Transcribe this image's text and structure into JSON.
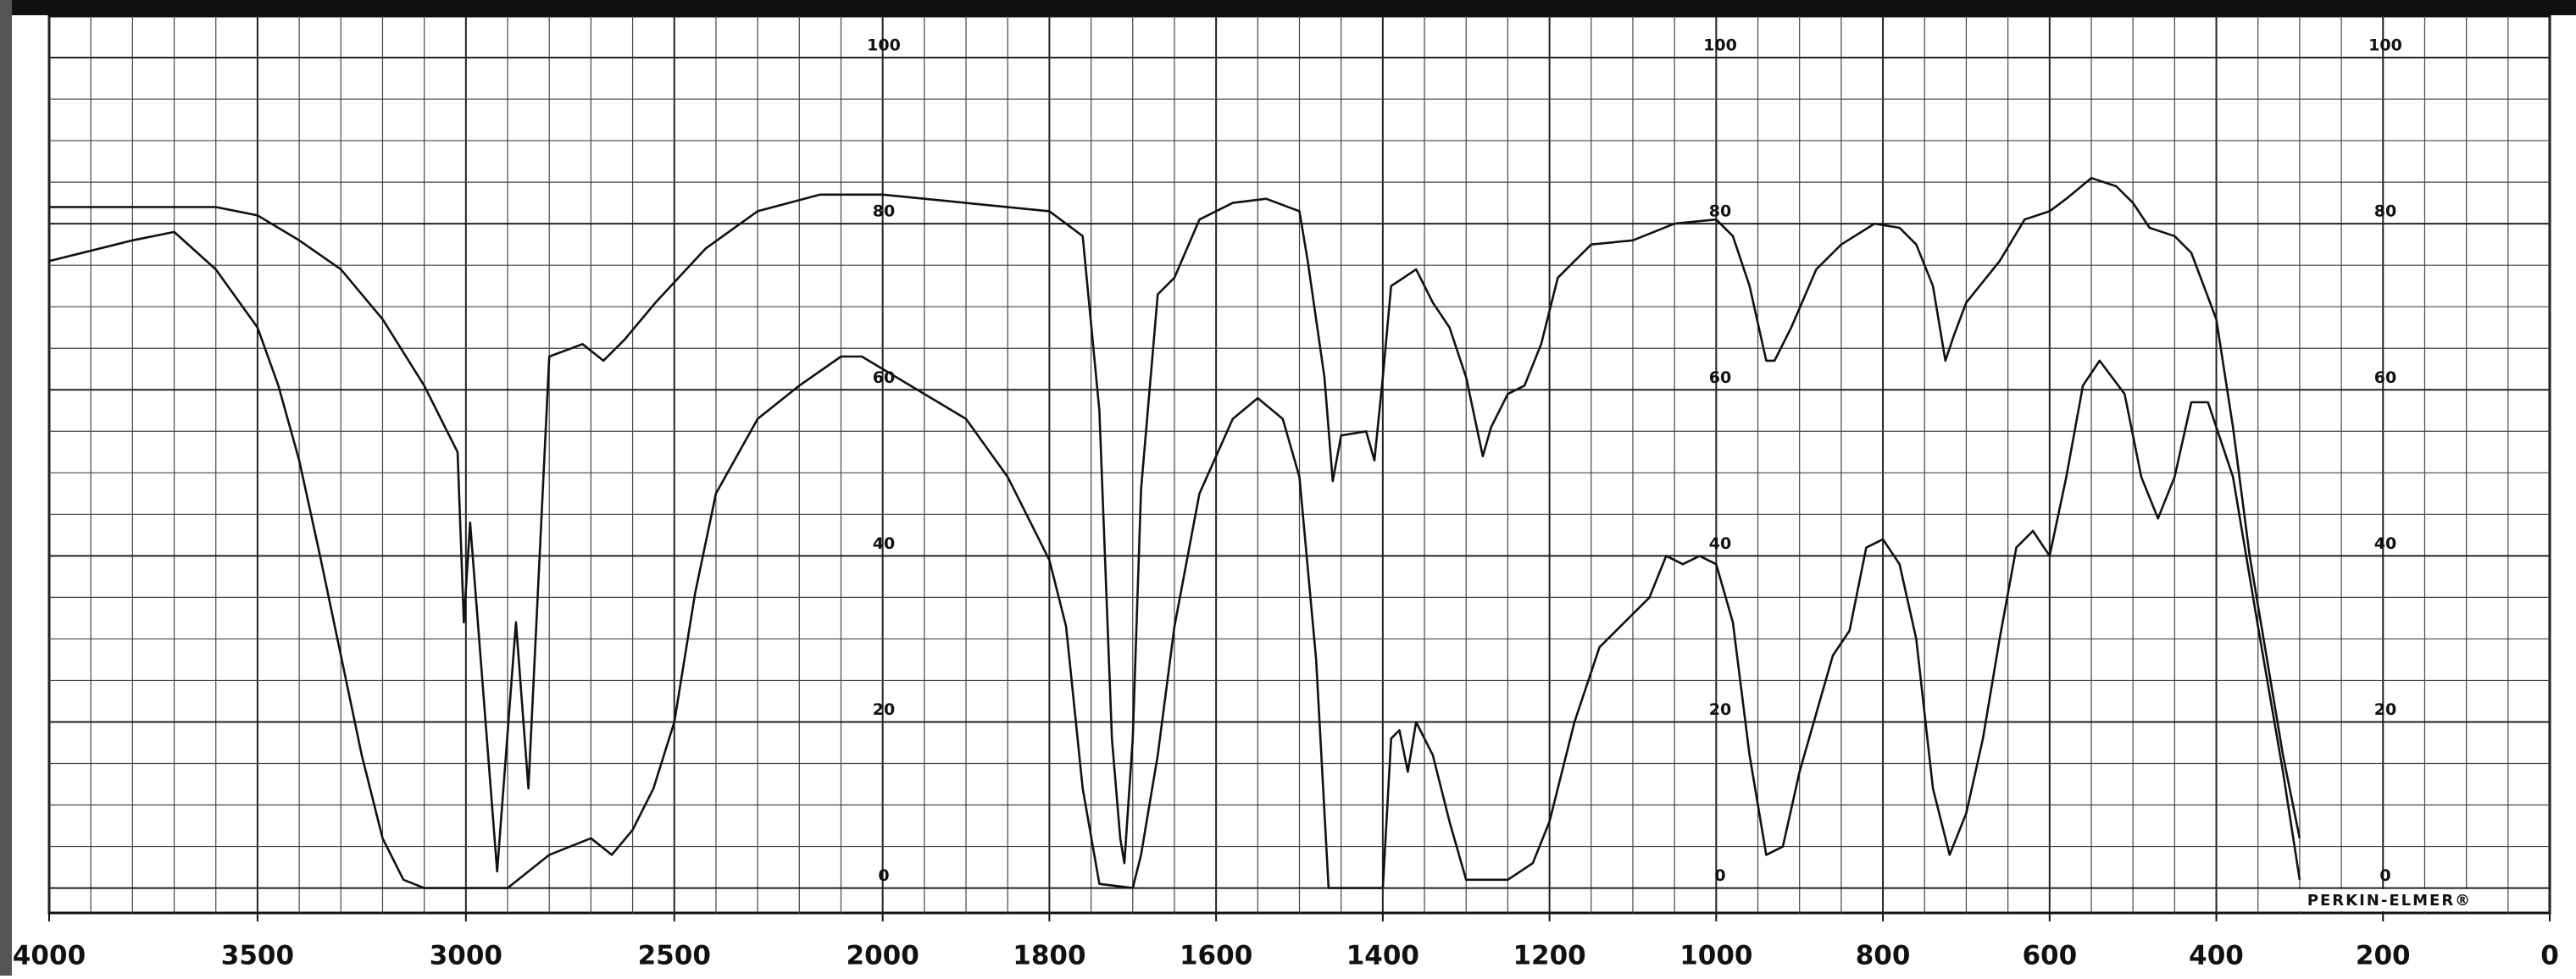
{
  "chart_data": {
    "type": "line",
    "brand": "PERKIN-ELMER®",
    "xlim": [
      4000,
      0
    ],
    "xticks": [
      4000,
      3500,
      3000,
      2500,
      2000,
      1800,
      1600,
      1400,
      1200,
      1000,
      800,
      600,
      400,
      200,
      0
    ],
    "ylim": [
      -3,
      105
    ],
    "yticks": [
      0,
      20,
      40,
      60,
      80,
      100
    ],
    "grid": true,
    "series": [
      {
        "color": "#111111",
        "x": [
          4000,
          3800,
          3600,
          3500,
          3400,
          3300,
          3200,
          3100,
          3050,
          3020,
          3005,
          2990,
          2925,
          2880,
          2850,
          2800,
          2720,
          2670,
          2620,
          2545,
          2425,
          2300,
          2150,
          2000,
          1900,
          1800,
          1760,
          1740,
          1725,
          1715,
          1710,
          1700,
          1690,
          1670,
          1650,
          1620,
          1580,
          1540,
          1500,
          1490,
          1470,
          1460,
          1450,
          1420,
          1410,
          1400,
          1390,
          1375,
          1360,
          1340,
          1320,
          1300,
          1280,
          1270,
          1250,
          1230,
          1210,
          1190,
          1150,
          1100,
          1050,
          1000,
          980,
          960,
          940,
          930,
          910,
          880,
          850,
          810,
          780,
          760,
          740,
          725,
          715,
          700,
          660,
          630,
          600,
          580,
          550,
          520,
          500,
          480,
          450,
          430,
          400,
          380,
          360,
          340,
          320,
          300
        ],
        "values": [
          82,
          82,
          82,
          81,
          78,
          74.5,
          68.5,
          60.5,
          55.5,
          52.5,
          32,
          44,
          2,
          32,
          12,
          64,
          65.5,
          63.5,
          66,
          70.5,
          77,
          81.5,
          83.5,
          83.5,
          82.5,
          81.5,
          78.5,
          57.5,
          18,
          6,
          3,
          18,
          48,
          71.5,
          73.5,
          80.5,
          82.5,
          83,
          81.5,
          75.5,
          61.5,
          49,
          54.5,
          55,
          51.5,
          61.5,
          72.5,
          73.5,
          74.5,
          70.5,
          67.5,
          61.5,
          52,
          55.5,
          59.5,
          60.5,
          65.5,
          73.5,
          77.5,
          78,
          80,
          80.5,
          78.5,
          72.5,
          63.5,
          63.5,
          67.5,
          74.5,
          77.5,
          80,
          79.5,
          77.5,
          72.5,
          63.5,
          66.5,
          70.5,
          75.5,
          80.5,
          81.5,
          83,
          85.5,
          84.5,
          82.5,
          79.5,
          78.5,
          76.5,
          68.5,
          55.5,
          40,
          28,
          16,
          6
        ]
      },
      {
        "color": "#111111",
        "x": [
          4000,
          3800,
          3700,
          3600,
          3500,
          3450,
          3400,
          3350,
          3300,
          3250,
          3200,
          3150,
          3100,
          2900,
          2800,
          2700,
          2650,
          2600,
          2550,
          2500,
          2450,
          2400,
          2300,
          2200,
          2100,
          2050,
          2000,
          1900,
          1850,
          1800,
          1780,
          1760,
          1740,
          1700,
          1690,
          1670,
          1650,
          1620,
          1580,
          1550,
          1520,
          1500,
          1480,
          1465,
          1400,
          1390,
          1380,
          1370,
          1360,
          1340,
          1320,
          1300,
          1250,
          1220,
          1200,
          1170,
          1140,
          1110,
          1080,
          1060,
          1040,
          1020,
          1000,
          980,
          960,
          940,
          920,
          900,
          860,
          840,
          820,
          800,
          780,
          760,
          740,
          720,
          700,
          680,
          660,
          640,
          620,
          600,
          580,
          560,
          540,
          510,
          490,
          470,
          450,
          430,
          410,
          380,
          350,
          320,
          300
        ],
        "values": [
          75.5,
          78,
          79,
          74.5,
          67.5,
          60.5,
          51.5,
          40,
          28,
          16,
          6,
          1,
          0,
          0,
          4,
          6,
          4,
          7,
          12,
          20,
          35.5,
          47.5,
          56.5,
          60.5,
          64,
          64,
          62.5,
          56.5,
          49.5,
          39.5,
          31.5,
          12,
          0.5,
          0,
          4,
          16,
          31.5,
          47.5,
          56.5,
          59,
          56.5,
          49.5,
          27.5,
          0,
          0,
          18,
          19,
          14,
          20,
          16,
          8,
          1,
          1,
          3,
          8,
          20,
          29,
          32,
          35,
          40,
          39,
          40,
          39,
          32,
          16,
          4,
          5,
          14,
          28,
          31,
          41,
          42,
          39,
          30,
          12,
          4,
          9,
          18,
          30,
          41,
          43,
          40,
          49.5,
          60.5,
          63.5,
          59.5,
          49.5,
          44.5,
          49.5,
          58.5,
          58.5,
          49.5,
          31.5,
          14,
          1
        ]
      }
    ]
  }
}
